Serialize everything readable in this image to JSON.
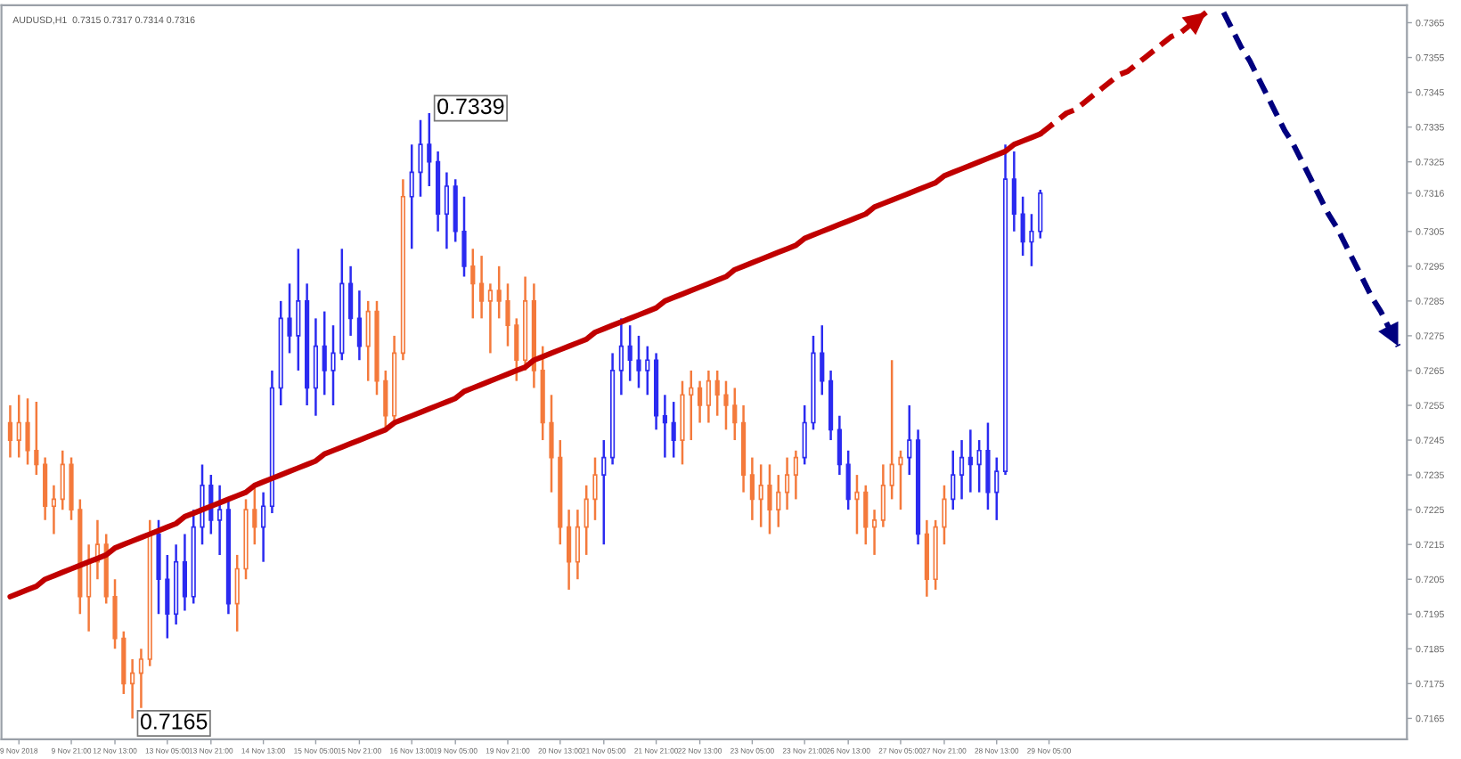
{
  "chart_data": {
    "type": "candlestick",
    "title": "AUDUSD,H1  0.7315 0.7317 0.7314 0.7316",
    "categories": [
      null,
      "9 Nov 2018",
      null,
      null,
      null,
      null,
      null,
      "9 Nov 21:00",
      null,
      null,
      null,
      null,
      "12 Nov 13:00",
      null,
      null,
      null,
      null,
      null,
      "13 Nov 05:00",
      null,
      null,
      null,
      null,
      "13 Nov 21:00",
      null,
      null,
      null,
      null,
      null,
      "14 Nov 13:00",
      null,
      null,
      null,
      null,
      null,
      "15 Nov 05:00",
      null,
      null,
      null,
      null,
      "15 Nov 21:00",
      null,
      null,
      null,
      null,
      null,
      "16 Nov 13:00",
      null,
      null,
      null,
      null,
      "19 Nov 05:00",
      null,
      null,
      null,
      null,
      null,
      "19 Nov 21:00",
      null,
      null,
      null,
      null,
      null,
      "20 Nov 13:00",
      null,
      null,
      null,
      null,
      "21 Nov 05:00",
      null,
      null,
      null,
      null,
      null,
      "21 Nov 21:00",
      null,
      null,
      null,
      null,
      "22 Nov 13:00",
      null,
      null,
      null,
      null,
      null,
      "23 Nov 05:00",
      null,
      null,
      null,
      null,
      null,
      "23 Nov 21:00",
      null,
      null,
      null,
      null,
      "26 Nov 13:00",
      null,
      null,
      null,
      null,
      null,
      "27 Nov 05:00",
      null,
      null,
      null,
      null,
      "27 Nov 21:00",
      null,
      null,
      null,
      null,
      null,
      "28 Nov 13:00",
      null,
      null,
      null,
      null,
      null,
      "29 Nov 05:00",
      null,
      null,
      null,
      null,
      null,
      null,
      null,
      null,
      null,
      null,
      null,
      null,
      null,
      null,
      null,
      null,
      null,
      null,
      null,
      null,
      null,
      null,
      null,
      null,
      null,
      null,
      null,
      null,
      null,
      null,
      null,
      null,
      null,
      null,
      null,
      null,
      null,
      null,
      null,
      null
    ],
    "ylim": [
      0.7159,
      0.737
    ],
    "yticks": [
      0.7365,
      0.7355,
      0.7345,
      0.7335,
      0.7325,
      0.7316,
      0.7305,
      0.7295,
      0.7285,
      0.7275,
      0.7265,
      0.7255,
      0.7245,
      0.7235,
      0.7225,
      0.7215,
      0.7205,
      0.7195,
      0.7185,
      0.7175,
      0.7165
    ],
    "grid": false,
    "legend": false,
    "annotations": [
      "0.7339",
      "0.7165"
    ],
    "series": [
      {
        "ohlc": [
          [
            0.725,
            0.7255,
            0.724,
            0.7245
          ],
          [
            0.7245,
            0.7258,
            0.724,
            0.725
          ],
          [
            0.725,
            0.7257,
            0.7238,
            0.7242
          ],
          [
            0.7242,
            0.7256,
            0.7235,
            0.7238
          ],
          [
            0.7238,
            0.724,
            0.7222,
            0.7226
          ],
          [
            0.7226,
            0.7232,
            0.7218,
            0.7228
          ],
          [
            0.7228,
            0.7242,
            0.7225,
            0.7238
          ],
          [
            0.7238,
            0.724,
            0.7222,
            0.7225
          ],
          [
            0.7225,
            0.7228,
            0.7195,
            0.72
          ],
          [
            0.72,
            0.7215,
            0.719,
            0.721
          ],
          [
            0.721,
            0.7222,
            0.7205,
            0.7215
          ],
          [
            0.7215,
            0.7218,
            0.7198,
            0.72
          ],
          [
            0.72,
            0.7205,
            0.7185,
            0.7188
          ],
          [
            0.7188,
            0.719,
            0.7172,
            0.7175
          ],
          [
            0.7175,
            0.7182,
            0.7165,
            0.7178
          ],
          [
            0.7178,
            0.7185,
            0.7168,
            0.7182
          ],
          [
            0.7182,
            0.7222,
            0.718,
            0.7218
          ],
          [
            0.7218,
            0.7222,
            0.7195,
            0.7205
          ],
          [
            0.7205,
            0.7212,
            0.7188,
            0.7195
          ],
          [
            0.7195,
            0.7215,
            0.7192,
            0.721
          ],
          [
            0.721,
            0.7218,
            0.7196,
            0.72
          ],
          [
            0.72,
            0.7225,
            0.7198,
            0.722
          ],
          [
            0.722,
            0.7238,
            0.7215,
            0.7232
          ],
          [
            0.7232,
            0.7235,
            0.7218,
            0.7222
          ],
          [
            0.7222,
            0.7232,
            0.7212,
            0.7225
          ],
          [
            0.7225,
            0.7228,
            0.7195,
            0.7198
          ],
          [
            0.7198,
            0.7212,
            0.719,
            0.7208
          ],
          [
            0.7208,
            0.7228,
            0.7205,
            0.7225
          ],
          [
            0.7225,
            0.7232,
            0.7215,
            0.722
          ],
          [
            0.722,
            0.723,
            0.721,
            0.7226
          ],
          [
            0.7226,
            0.7265,
            0.7224,
            0.726
          ],
          [
            0.726,
            0.7285,
            0.7255,
            0.728
          ],
          [
            0.728,
            0.729,
            0.727,
            0.7275
          ],
          [
            0.7275,
            0.73,
            0.7265,
            0.7285
          ],
          [
            0.7285,
            0.729,
            0.7255,
            0.726
          ],
          [
            0.726,
            0.728,
            0.7252,
            0.7272
          ],
          [
            0.7272,
            0.7282,
            0.7258,
            0.7265
          ],
          [
            0.7265,
            0.7278,
            0.7255,
            0.727
          ],
          [
            0.727,
            0.73,
            0.7268,
            0.729
          ],
          [
            0.729,
            0.7295,
            0.7275,
            0.728
          ],
          [
            0.728,
            0.7288,
            0.7268,
            0.7272
          ],
          [
            0.7272,
            0.7285,
            0.7262,
            0.7282
          ],
          [
            0.7282,
            0.7285,
            0.7258,
            0.7262
          ],
          [
            0.7262,
            0.7265,
            0.7248,
            0.7252
          ],
          [
            0.7252,
            0.7275,
            0.725,
            0.727
          ],
          [
            0.727,
            0.732,
            0.7268,
            0.7315
          ],
          [
            0.7315,
            0.733,
            0.73,
            0.7322
          ],
          [
            0.7322,
            0.7337,
            0.7315,
            0.733
          ],
          [
            0.733,
            0.7339,
            0.7318,
            0.7325
          ],
          [
            0.7325,
            0.7328,
            0.7305,
            0.731
          ],
          [
            0.731,
            0.7322,
            0.73,
            0.7318
          ],
          [
            0.7318,
            0.732,
            0.7302,
            0.7305
          ],
          [
            0.7305,
            0.7315,
            0.7292,
            0.7295
          ],
          [
            0.7295,
            0.73,
            0.728,
            0.729
          ],
          [
            0.729,
            0.7298,
            0.728,
            0.7285
          ],
          [
            0.7285,
            0.729,
            0.727,
            0.7288
          ],
          [
            0.7288,
            0.7295,
            0.728,
            0.7285
          ],
          [
            0.7285,
            0.729,
            0.7272,
            0.7278
          ],
          [
            0.7278,
            0.728,
            0.7262,
            0.7268
          ],
          [
            0.7268,
            0.7292,
            0.7265,
            0.7285
          ],
          [
            0.7285,
            0.729,
            0.726,
            0.7265
          ],
          [
            0.7265,
            0.7272,
            0.7245,
            0.725
          ],
          [
            0.725,
            0.7258,
            0.723,
            0.724
          ],
          [
            0.724,
            0.7245,
            0.7215,
            0.722
          ],
          [
            0.722,
            0.7225,
            0.7202,
            0.721
          ],
          [
            0.721,
            0.7225,
            0.7205,
            0.722
          ],
          [
            0.722,
            0.7232,
            0.7212,
            0.7228
          ],
          [
            0.7228,
            0.724,
            0.7222,
            0.7235
          ],
          [
            0.7235,
            0.7245,
            0.7215,
            0.724
          ],
          [
            0.724,
            0.727,
            0.7238,
            0.7265
          ],
          [
            0.7265,
            0.728,
            0.7258,
            0.7272
          ],
          [
            0.7272,
            0.7278,
            0.7262,
            0.7268
          ],
          [
            0.7268,
            0.7275,
            0.726,
            0.7265
          ],
          [
            0.7265,
            0.7272,
            0.7258,
            0.7268
          ],
          [
            0.7268,
            0.727,
            0.7248,
            0.7252
          ],
          [
            0.7252,
            0.7258,
            0.724,
            0.725
          ],
          [
            0.725,
            0.7256,
            0.724,
            0.7245
          ],
          [
            0.7245,
            0.7262,
            0.7238,
            0.7258
          ],
          [
            0.7258,
            0.7265,
            0.7245,
            0.726
          ],
          [
            0.726,
            0.7262,
            0.725,
            0.7255
          ],
          [
            0.7255,
            0.7265,
            0.725,
            0.7262
          ],
          [
            0.7262,
            0.7265,
            0.7252,
            0.7258
          ],
          [
            0.7258,
            0.7262,
            0.7248,
            0.7255
          ],
          [
            0.7255,
            0.726,
            0.7245,
            0.725
          ],
          [
            0.725,
            0.7255,
            0.723,
            0.7235
          ],
          [
            0.7235,
            0.724,
            0.7222,
            0.7228
          ],
          [
            0.7228,
            0.7238,
            0.722,
            0.7232
          ],
          [
            0.7232,
            0.7238,
            0.7218,
            0.7225
          ],
          [
            0.7225,
            0.7235,
            0.722,
            0.723
          ],
          [
            0.723,
            0.724,
            0.7225,
            0.7235
          ],
          [
            0.7235,
            0.7242,
            0.7228,
            0.724
          ],
          [
            0.724,
            0.7255,
            0.7238,
            0.725
          ],
          [
            0.725,
            0.7275,
            0.7248,
            0.727
          ],
          [
            0.727,
            0.7278,
            0.7258,
            0.7262
          ],
          [
            0.7262,
            0.7265,
            0.7245,
            0.7248
          ],
          [
            0.7248,
            0.7252,
            0.7235,
            0.7238
          ],
          [
            0.7238,
            0.7242,
            0.7225,
            0.7228
          ],
          [
            0.7228,
            0.7235,
            0.7218,
            0.723
          ],
          [
            0.723,
            0.7232,
            0.7215,
            0.722
          ],
          [
            0.722,
            0.7225,
            0.7212,
            0.7222
          ],
          [
            0.7222,
            0.7238,
            0.722,
            0.7232
          ],
          [
            0.7232,
            0.7268,
            0.7228,
            0.7238
          ],
          [
            0.7238,
            0.7242,
            0.7225,
            0.724
          ],
          [
            0.724,
            0.7255,
            0.7235,
            0.7245
          ],
          [
            0.7245,
            0.7248,
            0.7215,
            0.7218
          ],
          [
            0.7218,
            0.7222,
            0.72,
            0.7205
          ],
          [
            0.7205,
            0.7222,
            0.7202,
            0.722
          ],
          [
            0.722,
            0.7232,
            0.7215,
            0.7228
          ],
          [
            0.7228,
            0.7242,
            0.7225,
            0.7235
          ],
          [
            0.7235,
            0.7245,
            0.7228,
            0.724
          ],
          [
            0.724,
            0.7248,
            0.723,
            0.7238
          ],
          [
            0.7238,
            0.7245,
            0.723,
            0.7242
          ],
          [
            0.7242,
            0.725,
            0.7225,
            0.723
          ],
          [
            0.723,
            0.724,
            0.7222,
            0.7236
          ],
          [
            0.7236,
            0.733,
            0.7235,
            0.732
          ],
          [
            0.732,
            0.7328,
            0.7305,
            0.731
          ],
          [
            0.731,
            0.7315,
            0.7298,
            0.7302
          ],
          [
            0.7302,
            0.731,
            0.7295,
            0.7305
          ],
          [
            0.7305,
            0.7317,
            0.7303,
            0.7316
          ],
          null,
          null,
          null,
          null,
          null,
          null,
          null,
          null,
          null,
          null,
          null,
          null,
          null,
          null,
          null,
          null,
          null,
          null,
          null,
          null,
          null,
          null,
          null,
          null,
          null,
          null,
          null,
          null,
          null,
          null,
          null,
          null,
          null,
          null,
          null,
          null,
          null,
          null,
          null,
          null,
          null
        ],
        "colors": [
          "#f47a3c",
          "#f47a3c",
          "#f47a3c",
          "#f47a3c",
          "#f47a3c",
          "#f47a3c",
          "#f47a3c",
          "#f47a3c",
          "#f47a3c",
          "#f47a3c",
          "#f47a3c",
          "#f47a3c",
          "#f47a3c",
          "#f47a3c",
          "#f47a3c",
          "#f47a3c",
          "#f47a3c",
          "#2b2bf0",
          "#2b2bf0",
          "#2b2bf0",
          "#2b2bf0",
          "#2b2bf0",
          "#2b2bf0",
          "#2b2bf0",
          "#2b2bf0",
          "#2b2bf0",
          "#f47a3c",
          "#f47a3c",
          "#f47a3c",
          "#2b2bf0",
          "#2b2bf0",
          "#2b2bf0",
          "#2b2bf0",
          "#2b2bf0",
          "#2b2bf0",
          "#2b2bf0",
          "#2b2bf0",
          "#2b2bf0",
          "#2b2bf0",
          "#2b2bf0",
          "#2b2bf0",
          "#f47a3c",
          "#f47a3c",
          "#f47a3c",
          "#f47a3c",
          "#f47a3c",
          "#2b2bf0",
          "#2b2bf0",
          "#2b2bf0",
          "#2b2bf0",
          "#2b2bf0",
          "#2b2bf0",
          "#2b2bf0",
          "#f47a3c",
          "#f47a3c",
          "#f47a3c",
          "#f47a3c",
          "#f47a3c",
          "#f47a3c",
          "#f47a3c",
          "#f47a3c",
          "#f47a3c",
          "#f47a3c",
          "#f47a3c",
          "#f47a3c",
          "#f47a3c",
          "#f47a3c",
          "#f47a3c",
          "#2b2bf0",
          "#2b2bf0",
          "#2b2bf0",
          "#2b2bf0",
          "#2b2bf0",
          "#2b2bf0",
          "#2b2bf0",
          "#2b2bf0",
          "#2b2bf0",
          "#f47a3c",
          "#f47a3c",
          "#f47a3c",
          "#f47a3c",
          "#f47a3c",
          "#f47a3c",
          "#f47a3c",
          "#f47a3c",
          "#f47a3c",
          "#f47a3c",
          "#f47a3c",
          "#f47a3c",
          "#f47a3c",
          "#f47a3c",
          "#2b2bf0",
          "#2b2bf0",
          "#2b2bf0",
          "#2b2bf0",
          "#2b2bf0",
          "#2b2bf0",
          "#f47a3c",
          "#f47a3c",
          "#f47a3c",
          "#f47a3c",
          "#f47a3c",
          "#f47a3c",
          "#2b2bf0",
          "#2b2bf0",
          "#f47a3c",
          "#f47a3c",
          "#f47a3c",
          "#2b2bf0",
          "#2b2bf0",
          "#2b2bf0",
          "#2b2bf0",
          "#2b2bf0",
          "#2b2bf0",
          "#2b2bf0",
          "#2b2bf0",
          "#2b2bf0",
          "#2b2bf0",
          "#2b2bf0",
          null,
          null,
          null,
          null,
          null,
          null,
          null,
          null,
          null,
          null,
          null,
          null,
          null,
          null,
          null,
          null,
          null,
          null,
          null,
          null,
          null,
          null,
          null,
          null,
          null,
          null,
          null,
          null,
          null,
          null,
          null,
          null,
          null,
          null,
          null,
          null,
          null,
          null,
          null,
          null,
          null
        ]
      },
      {
        "type": "line",
        "color": "#c00000",
        "line_style": "solid",
        "values": [
          0.72,
          0.7201,
          0.7202,
          0.7203,
          0.7205,
          0.7206,
          0.7207,
          0.7208,
          0.7209,
          0.721,
          0.7211,
          0.7212,
          0.7214,
          0.7215,
          0.7216,
          0.7217,
          0.7218,
          0.7219,
          0.722,
          0.7221,
          0.7223,
          0.7224,
          0.7225,
          0.7226,
          0.7227,
          0.7228,
          0.7229,
          0.723,
          0.7232,
          0.7233,
          0.7234,
          0.7235,
          0.7236,
          0.7237,
          0.7238,
          0.7239,
          0.7241,
          0.7242,
          0.7243,
          0.7244,
          0.7245,
          0.7246,
          0.7247,
          0.7248,
          0.725,
          0.7251,
          0.7252,
          0.7253,
          0.7254,
          0.7255,
          0.7256,
          0.7257,
          0.7259,
          0.726,
          0.7261,
          0.7262,
          0.7263,
          0.7264,
          0.7265,
          0.7266,
          0.7268,
          0.7269,
          0.727,
          0.7271,
          0.7272,
          0.7273,
          0.7274,
          0.7276,
          0.7277,
          0.7278,
          0.7279,
          0.728,
          0.7281,
          0.7282,
          0.7283,
          0.7285,
          0.7286,
          0.7287,
          0.7288,
          0.7289,
          0.729,
          0.7291,
          0.7292,
          0.7294,
          0.7295,
          0.7296,
          0.7297,
          0.7298,
          0.7299,
          0.73,
          0.7301,
          0.7303,
          0.7304,
          0.7305,
          0.7306,
          0.7307,
          0.7308,
          0.7309,
          0.731,
          0.7312,
          0.7313,
          0.7314,
          0.7315,
          0.7316,
          0.7317,
          0.7318,
          0.7319,
          0.7321,
          0.7322,
          0.7323,
          0.7324,
          0.7325,
          0.7326,
          0.7327,
          0.7328,
          0.733,
          0.7331,
          0.7332,
          0.7333,
          null,
          null,
          null,
          null,
          null,
          null,
          null,
          null,
          null,
          null,
          null,
          null,
          null,
          null,
          null,
          null,
          null,
          null,
          null,
          null,
          null,
          null,
          null,
          null,
          null,
          null,
          null,
          null,
          null,
          null,
          null,
          null,
          null,
          null,
          null,
          null,
          null,
          null,
          null,
          null,
          null
        ]
      },
      {
        "type": "line",
        "color": "#c00000",
        "line_style": "dashed",
        "values": [
          null,
          null,
          null,
          null,
          null,
          null,
          null,
          null,
          null,
          null,
          null,
          null,
          null,
          null,
          null,
          null,
          null,
          null,
          null,
          null,
          null,
          null,
          null,
          null,
          null,
          null,
          null,
          null,
          null,
          null,
          null,
          null,
          null,
          null,
          null,
          null,
          null,
          null,
          null,
          null,
          null,
          null,
          null,
          null,
          null,
          null,
          null,
          null,
          null,
          null,
          null,
          null,
          null,
          null,
          null,
          null,
          null,
          null,
          null,
          null,
          null,
          null,
          null,
          null,
          null,
          null,
          null,
          null,
          null,
          null,
          null,
          null,
          null,
          null,
          null,
          null,
          null,
          null,
          null,
          null,
          null,
          null,
          null,
          null,
          null,
          null,
          null,
          null,
          null,
          null,
          null,
          null,
          null,
          null,
          null,
          null,
          null,
          null,
          null,
          null,
          null,
          null,
          null,
          null,
          null,
          null,
          null,
          null,
          null,
          null,
          null,
          null,
          null,
          null,
          null,
          null,
          null,
          null,
          0.7333,
          0.7335,
          0.7337,
          0.7339,
          0.734,
          0.7342,
          0.7344,
          0.7346,
          0.7348,
          0.735,
          0.7351,
          0.7353,
          0.7355,
          0.7357,
          0.7359,
          0.7361,
          0.7362,
          0.7364,
          0.7366,
          0.7368,
          null,
          null,
          null,
          null,
          null,
          null,
          null,
          null,
          null,
          null,
          null,
          null,
          null,
          null,
          null,
          null,
          null,
          null,
          null,
          null,
          null,
          null
        ]
      },
      {
        "type": "line",
        "color": "#00007f",
        "line_style": "dashed",
        "values": [
          null,
          null,
          null,
          null,
          null,
          null,
          null,
          null,
          null,
          null,
          null,
          null,
          null,
          null,
          null,
          null,
          null,
          null,
          null,
          null,
          null,
          null,
          null,
          null,
          null,
          null,
          null,
          null,
          null,
          null,
          null,
          null,
          null,
          null,
          null,
          null,
          null,
          null,
          null,
          null,
          null,
          null,
          null,
          null,
          null,
          null,
          null,
          null,
          null,
          null,
          null,
          null,
          null,
          null,
          null,
          null,
          null,
          null,
          null,
          null,
          null,
          null,
          null,
          null,
          null,
          null,
          null,
          null,
          null,
          null,
          null,
          null,
          null,
          null,
          null,
          null,
          null,
          null,
          null,
          null,
          null,
          null,
          null,
          null,
          null,
          null,
          null,
          null,
          null,
          null,
          null,
          null,
          null,
          null,
          null,
          null,
          null,
          null,
          null,
          null,
          null,
          null,
          null,
          null,
          null,
          null,
          null,
          null,
          null,
          null,
          null,
          null,
          null,
          null,
          null,
          null,
          null,
          null,
          null,
          null,
          null,
          null,
          null,
          null,
          null,
          null,
          null,
          null,
          null,
          null,
          null,
          null,
          null,
          null,
          null,
          null,
          null,
          null,
          null,
          0.7368,
          0.7363,
          0.7358,
          0.7354,
          0.7349,
          0.7344,
          0.7339,
          0.7334,
          0.733,
          0.7325,
          0.732,
          0.7315,
          0.731,
          0.7306,
          0.7301,
          0.7296,
          0.7291,
          0.7286,
          0.7282,
          0.7277,
          0.7272
        ]
      }
    ]
  }
}
